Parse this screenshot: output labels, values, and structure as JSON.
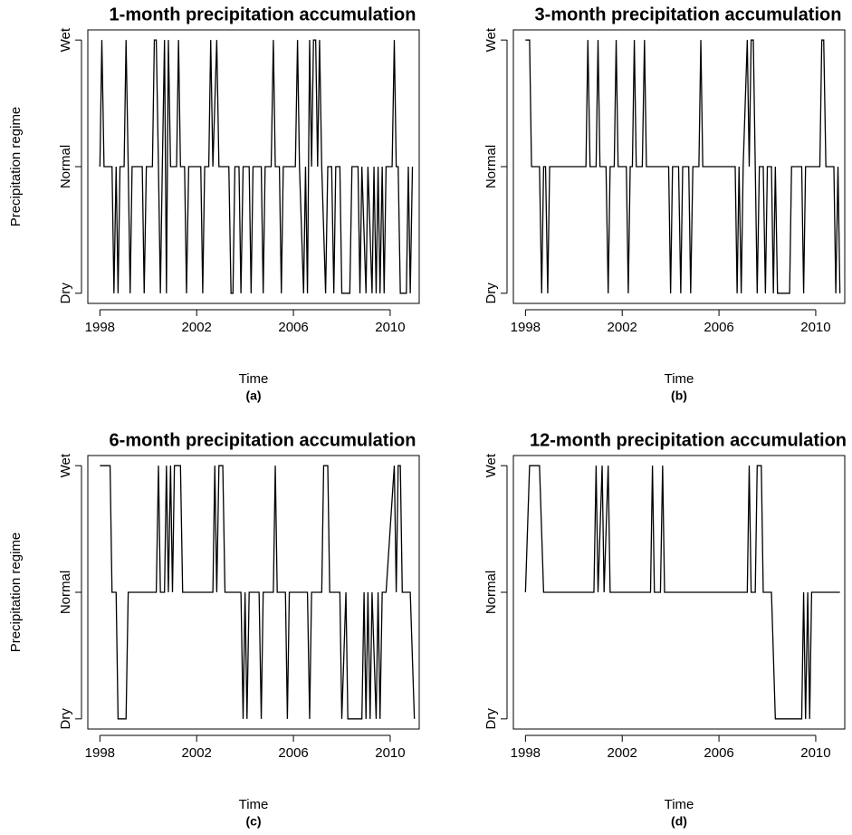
{
  "chart_data": [
    {
      "type": "line",
      "title": "1-month precipitation accumulation",
      "x_label": "Time",
      "y_label": "Precipitation regime",
      "caption": "(a)",
      "xlim": [
        1997.5,
        2011.2
      ],
      "xticks": [
        1998,
        2002,
        2006,
        2010
      ],
      "ylim": [
        0.92,
        3.08
      ],
      "yticks": [
        {
          "value": 1,
          "label": "Dry"
        },
        {
          "value": 2,
          "label": "Normal"
        },
        {
          "value": 3,
          "label": "Wet"
        }
      ],
      "x": [
        1998.0,
        1998.08,
        1998.17,
        1998.5,
        1998.58,
        1998.67,
        1998.75,
        1998.83,
        1999.0,
        1999.08,
        1999.17,
        1999.25,
        1999.33,
        1999.75,
        1999.83,
        1999.92,
        2000.17,
        2000.25,
        2000.33,
        2000.42,
        2000.5,
        2000.58,
        2000.67,
        2000.75,
        2000.83,
        2000.92,
        2001.17,
        2001.25,
        2001.33,
        2001.5,
        2001.58,
        2001.67,
        2002.17,
        2002.25,
        2002.33,
        2002.5,
        2002.58,
        2002.67,
        2002.83,
        2002.92,
        2003.33,
        2003.42,
        2003.5,
        2003.58,
        2003.75,
        2003.83,
        2003.92,
        2004.17,
        2004.25,
        2004.33,
        2004.67,
        2004.75,
        2004.83,
        2005.08,
        2005.17,
        2005.25,
        2005.42,
        2005.5,
        2005.58,
        2006.08,
        2006.17,
        2006.25,
        2006.42,
        2006.5,
        2006.58,
        2006.67,
        2006.75,
        2006.83,
        2006.92,
        2007.0,
        2007.08,
        2007.17,
        2007.33,
        2007.42,
        2007.58,
        2007.67,
        2007.75,
        2007.92,
        2008.0,
        2008.33,
        2008.42,
        2008.67,
        2008.75,
        2008.83,
        2009.0,
        2009.08,
        2009.25,
        2009.33,
        2009.42,
        2009.5,
        2009.58,
        2009.67,
        2009.75,
        2009.83,
        2010.08,
        2010.17,
        2010.25,
        2010.33,
        2010.42,
        2010.67,
        2010.75,
        2010.83,
        2010.92
      ],
      "series": [
        {
          "color": "#000000",
          "values": [
            2,
            3,
            2,
            2,
            1,
            2,
            1,
            2,
            2,
            3,
            2,
            1,
            2,
            2,
            1,
            2,
            2,
            3,
            3,
            2,
            1,
            2,
            3,
            1,
            3,
            2,
            2,
            3,
            2,
            2,
            1,
            2,
            2,
            1,
            2,
            2,
            3,
            2,
            3,
            2,
            2,
            1,
            1,
            2,
            2,
            1,
            2,
            2,
            1,
            2,
            2,
            1,
            2,
            2,
            3,
            2,
            2,
            1,
            2,
            2,
            3,
            2,
            1,
            2,
            1,
            3,
            2,
            3,
            3,
            2,
            3,
            2,
            1,
            2,
            2,
            1,
            2,
            2,
            1,
            1,
            2,
            2,
            1,
            2,
            1,
            2,
            1,
            2,
            1,
            2,
            1,
            2,
            1,
            2,
            2,
            3,
            2,
            2,
            1,
            1,
            2,
            1,
            2
          ]
        }
      ]
    },
    {
      "type": "line",
      "title": "3-month precipitation accumulation",
      "x_label": "Time",
      "caption": "(b)",
      "xlim": [
        1997.5,
        2011.2
      ],
      "xticks": [
        1998,
        2002,
        2006,
        2010
      ],
      "ylim": [
        0.92,
        3.08
      ],
      "yticks": [
        {
          "value": 1,
          "label": "Dry"
        },
        {
          "value": 2,
          "label": "Normal"
        },
        {
          "value": 3,
          "label": "Wet"
        }
      ],
      "x": [
        1998.0,
        1998.17,
        1998.25,
        1998.58,
        1998.67,
        1998.75,
        1998.83,
        1998.92,
        1999.0,
        2000.5,
        2000.58,
        2000.67,
        2000.92,
        2001.0,
        2001.08,
        2001.33,
        2001.42,
        2001.5,
        2001.67,
        2001.75,
        2001.83,
        2002.17,
        2002.25,
        2002.33,
        2002.42,
        2002.5,
        2002.58,
        2002.83,
        2002.92,
        2003.0,
        2003.92,
        2004.0,
        2004.08,
        2004.33,
        2004.42,
        2004.5,
        2004.75,
        2004.83,
        2004.92,
        2005.17,
        2005.25,
        2005.33,
        2006.67,
        2006.75,
        2006.83,
        2006.92,
        2007.0,
        2007.17,
        2007.25,
        2007.33,
        2007.42,
        2007.5,
        2007.58,
        2007.67,
        2007.83,
        2007.92,
        2008.0,
        2008.17,
        2008.25,
        2008.33,
        2008.42,
        2008.92,
        2009.0,
        2009.42,
        2009.5,
        2009.58,
        2010.17,
        2010.25,
        2010.33,
        2010.42,
        2010.75,
        2010.83,
        2010.92,
        2011.0
      ],
      "series": [
        {
          "color": "#000000",
          "values": [
            3,
            3,
            2,
            2,
            1,
            2,
            2,
            1,
            2,
            2,
            3,
            2,
            2,
            3,
            2,
            2,
            1,
            2,
            2,
            3,
            2,
            2,
            1,
            2,
            2,
            3,
            2,
            2,
            3,
            2,
            2,
            1,
            2,
            2,
            1,
            2,
            2,
            1,
            2,
            2,
            3,
            2,
            2,
            1,
            2,
            1,
            2,
            3,
            2,
            3,
            3,
            2,
            1,
            2,
            2,
            1,
            2,
            2,
            1,
            2,
            1,
            1,
            2,
            2,
            1,
            2,
            2,
            3,
            3,
            2,
            2,
            1,
            2,
            1
          ]
        }
      ]
    },
    {
      "type": "line",
      "title": "6-month precipitation accumulation",
      "x_label": "Time",
      "y_label": "Precipitation regime",
      "caption": "(c)",
      "xlim": [
        1997.5,
        2011.2
      ],
      "xticks": [
        1998,
        2002,
        2006,
        2010
      ],
      "ylim": [
        0.92,
        3.08
      ],
      "yticks": [
        {
          "value": 1,
          "label": "Dry"
        },
        {
          "value": 2,
          "label": "Normal"
        },
        {
          "value": 3,
          "label": "Wet"
        }
      ],
      "x": [
        1998.0,
        1998.42,
        1998.5,
        1998.67,
        1998.75,
        1999.08,
        1999.17,
        2000.33,
        2000.42,
        2000.5,
        2000.67,
        2000.75,
        2000.83,
        2000.92,
        2001.0,
        2001.08,
        2001.33,
        2001.42,
        2002.67,
        2002.75,
        2002.83,
        2002.92,
        2003.08,
        2003.17,
        2003.83,
        2003.92,
        2004.0,
        2004.08,
        2004.17,
        2004.58,
        2004.67,
        2004.75,
        2005.17,
        2005.25,
        2005.33,
        2005.67,
        2005.75,
        2005.83,
        2006.58,
        2006.67,
        2006.75,
        2007.17,
        2007.25,
        2007.42,
        2007.5,
        2007.92,
        2008.0,
        2008.17,
        2008.25,
        2008.83,
        2008.92,
        2009.0,
        2009.08,
        2009.17,
        2009.25,
        2009.42,
        2009.5,
        2009.58,
        2009.67,
        2009.83,
        2010.17,
        2010.25,
        2010.33,
        2010.42,
        2010.5,
        2010.83,
        2011.0
      ],
      "series": [
        {
          "color": "#000000",
          "values": [
            3,
            3,
            2,
            2,
            1,
            1,
            2,
            2,
            3,
            2,
            2,
            3,
            2,
            3,
            2,
            3,
            3,
            2,
            2,
            3,
            2,
            3,
            3,
            2,
            2,
            1,
            2,
            1,
            2,
            2,
            1,
            2,
            2,
            3,
            2,
            2,
            1,
            2,
            2,
            1,
            2,
            2,
            3,
            3,
            2,
            2,
            1,
            2,
            1,
            1,
            2,
            1,
            2,
            1,
            2,
            1,
            2,
            1,
            2,
            2,
            3,
            2,
            3,
            3,
            2,
            2,
            1
          ]
        }
      ]
    },
    {
      "type": "line",
      "title": "12-month precipitation accumulation",
      "x_label": "Time",
      "caption": "(d)",
      "xlim": [
        1997.5,
        2011.2
      ],
      "xticks": [
        1998,
        2002,
        2006,
        2010
      ],
      "ylim": [
        0.92,
        3.08
      ],
      "yticks": [
        {
          "value": 1,
          "label": "Dry"
        },
        {
          "value": 2,
          "label": "Normal"
        },
        {
          "value": 3,
          "label": "Wet"
        }
      ],
      "x": [
        1998.0,
        1998.17,
        1998.58,
        1998.75,
        2000.83,
        2000.92,
        2001.0,
        2001.17,
        2001.25,
        2001.42,
        2001.5,
        2003.17,
        2003.25,
        2003.33,
        2003.58,
        2003.67,
        2003.75,
        2007.17,
        2007.25,
        2007.33,
        2007.5,
        2007.58,
        2007.75,
        2007.83,
        2008.17,
        2008.33,
        2009.42,
        2009.5,
        2009.58,
        2009.67,
        2009.75,
        2009.83,
        2011.0
      ],
      "series": [
        {
          "color": "#000000",
          "values": [
            2,
            3,
            3,
            2,
            2,
            3,
            2,
            3,
            2,
            3,
            2,
            2,
            3,
            2,
            2,
            3,
            2,
            2,
            3,
            2,
            2,
            3,
            3,
            2,
            2,
            1,
            1,
            2,
            1,
            2,
            1,
            2,
            2
          ]
        }
      ]
    }
  ]
}
